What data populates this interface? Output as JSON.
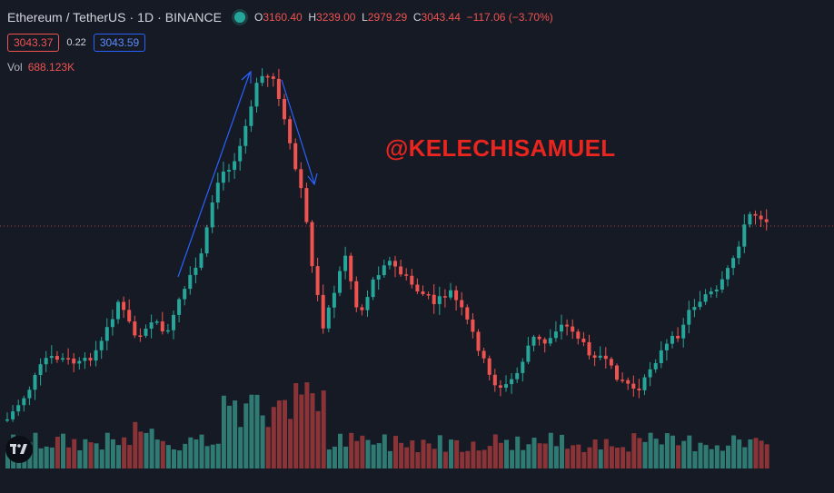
{
  "header": {
    "symbol": "Ethereum / TetherUS",
    "interval": "1D",
    "exchange": "BINANCE",
    "open_label": "O",
    "open": "3160.40",
    "high_label": "H",
    "high": "3239.00",
    "low_label": "L",
    "low": "2979.29",
    "close_label": "C",
    "close": "3043.44",
    "change": "−117.06 (−3.70%)"
  },
  "quote": {
    "bid": "3043.37",
    "spread": "0.22",
    "ask": "3043.59"
  },
  "volume": {
    "label": "Vol",
    "value": "688.123K"
  },
  "watermark": "@KELECHISAMUEL",
  "icons": {
    "logo": "tradingview-logo-icon",
    "status": "market-open-dot-icon"
  },
  "colors": {
    "up": "#26a69a",
    "down": "#ef5350",
    "background": "#161a25",
    "annotation": "#2962ff",
    "watermark": "#e8251f"
  },
  "chart_data": {
    "type": "candlestick",
    "grid": false,
    "last_price_line": true,
    "annotations": [
      "arrow-up-trend",
      "arrow-down-trend"
    ]
  }
}
